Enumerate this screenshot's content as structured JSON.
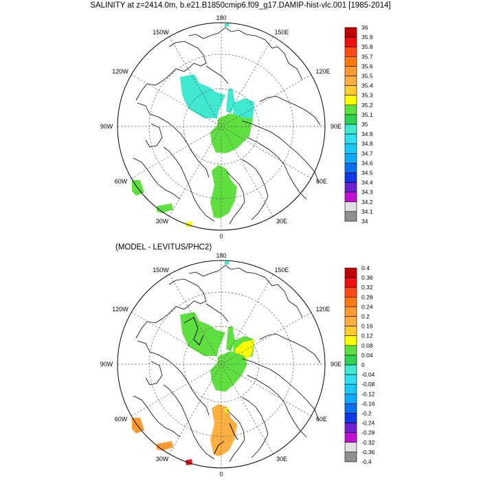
{
  "title": "SALINITY at z=2414.0m, b.e21.B1850cmip6.f09_g17.DAMIP-hist-vlc.001 [1985-2014]",
  "subtitle": "(MODEL - LEVITUS/PHC2)",
  "lon_labels": {
    "top": "180",
    "bottom": "0",
    "upper_left": "150W",
    "upper_right": "150E",
    "mid_left": "120W",
    "mid_right": "120E",
    "left": "90W",
    "right": "90E",
    "lower_left": "60W",
    "lower_right": "60E",
    "bottom_left": "30W",
    "bottom_right": "30E"
  },
  "panel1": {
    "colorbar_labels": [
      "36",
      "35.9",
      "35.8",
      "35.7",
      "35.6",
      "35.5",
      "35.4",
      "35.3",
      "35.2",
      "35.1",
      "35",
      "34.9",
      "34.8",
      "34.7",
      "34.6",
      "34.5",
      "34.4",
      "34.3",
      "34.2",
      "34.1",
      "34"
    ],
    "colorbar_colors": [
      "#c00000",
      "#ee1010",
      "#ff4a18",
      "#ff7a10",
      "#ff9a30",
      "#ffb040",
      "#ffcc30",
      "#ffff00",
      "#60e040",
      "#30d050",
      "#40e8d0",
      "#30e0f0",
      "#18c8f8",
      "#10a8ff",
      "#0a70f0",
      "#1038e8",
      "#7020d0",
      "#c010d0",
      "#e0e0e0",
      "#909090"
    ]
  },
  "panel2": {
    "colorbar_labels": [
      "0.4",
      "0.36",
      "0.32",
      "0.28",
      "0.24",
      "0.2",
      "0.16",
      "0.12",
      "0.08",
      "0.04",
      "0",
      "-0.04",
      "-0.08",
      "-0.12",
      "-0.16",
      "-0.2",
      "-0.24",
      "-0.28",
      "-0.32",
      "-0.36",
      "-0.4"
    ],
    "colorbar_colors": [
      "#c00000",
      "#ee1010",
      "#ff4a18",
      "#ff7a10",
      "#ff9a30",
      "#ffb040",
      "#ffcc30",
      "#ffff00",
      "#60e040",
      "#30d050",
      "#40e8d0",
      "#30e0f0",
      "#18c8f8",
      "#10a8ff",
      "#0a70f0",
      "#1038e8",
      "#7020d0",
      "#c010d0",
      "#e0e0e0",
      "#909090"
    ]
  }
}
